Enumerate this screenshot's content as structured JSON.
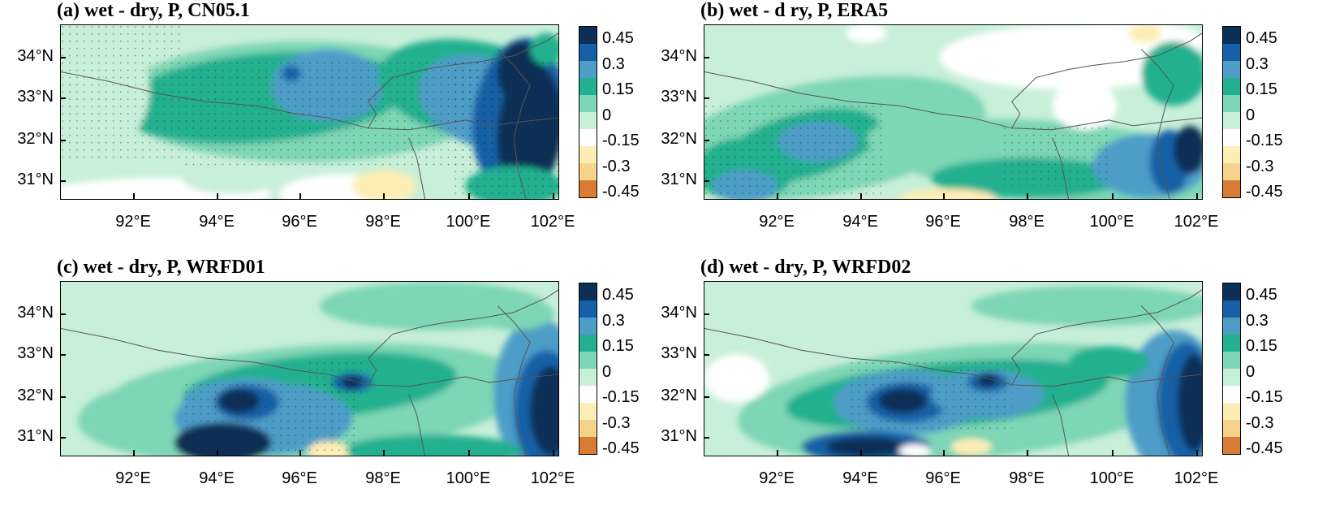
{
  "colors": {
    "scale": [
      "#0b2f55",
      "#1560a6",
      "#4d9dc7",
      "#23b08f",
      "#7dd6b5",
      "#c8efd8",
      "#ffffff",
      "#fdeeb5",
      "#f7d28a",
      "#eda95e",
      "#d97c35"
    ],
    "border": "#555555",
    "stipple": "#1a1a1a"
  },
  "colorbar": {
    "labels": [
      "0.45",
      "0.3",
      "0.15",
      "0",
      "-0.15",
      "-0.3",
      "-0.45"
    ]
  },
  "axes": {
    "lat_labels": [
      "34°N",
      "33°N",
      "32°N",
      "31°N"
    ],
    "lon_labels": [
      "92°E",
      "94°E",
      "96°E",
      "98°E",
      "100°E",
      "102°E"
    ]
  },
  "panels": [
    {
      "id": "a",
      "title": "(a) wet - dry, P, CN05.1",
      "variant": "cn05"
    },
    {
      "id": "b",
      "title": "(b) wet - d ry, P, ERA5",
      "variant": "era5"
    },
    {
      "id": "c",
      "title": "(c) wet - dry, P, WRFD01",
      "variant": "wrf1"
    },
    {
      "id": "d",
      "title": "(d) wet - dry, P, WRFD02",
      "variant": "wrf2"
    }
  ]
}
